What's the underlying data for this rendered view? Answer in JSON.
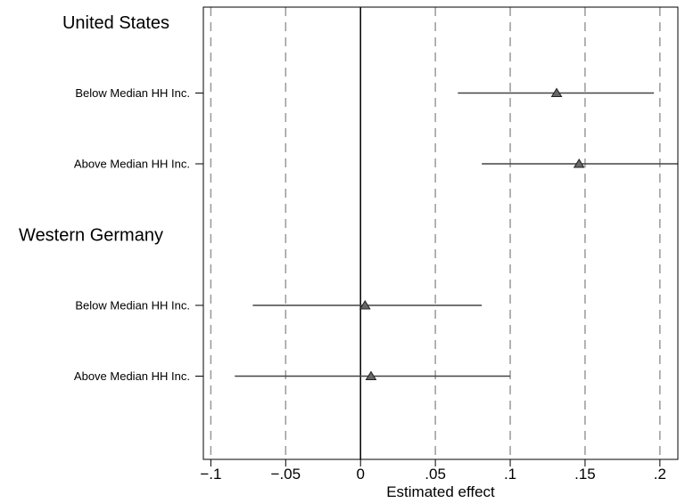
{
  "chart_data": {
    "type": "scatter",
    "subtype": "coefficient-plot",
    "xlabel": "Estimated effect",
    "xlim": [
      -0.105,
      0.212
    ],
    "x_ticks": [
      -0.1,
      -0.05,
      0,
      0.05,
      0.1,
      0.15,
      0.2
    ],
    "x_tick_labels": [
      "−.1",
      "−.05",
      "0",
      ".05",
      ".1",
      ".15",
      ".2"
    ],
    "grid": "vertical dashed at each x tick",
    "reference_line_x": 0,
    "marker": "triangle",
    "colors": {
      "marker_fill": "#666666",
      "marker_stroke": "#222222",
      "ci_line": "#444444",
      "grid": "#999999",
      "axis": "#000000"
    },
    "groups": [
      {
        "label": "United States",
        "rows": [
          {
            "label": "Below Median HH Inc.",
            "estimate": 0.131,
            "ci": [
              0.065,
              0.196
            ]
          },
          {
            "label": "Above Median HH Inc.",
            "estimate": 0.146,
            "ci": [
              0.081,
              0.212
            ]
          }
        ]
      },
      {
        "label": "Western Germany",
        "rows": [
          {
            "label": "Below Median HH Inc.",
            "estimate": 0.003,
            "ci": [
              -0.072,
              0.081
            ]
          },
          {
            "label": "Above Median HH Inc.",
            "estimate": 0.007,
            "ci": [
              -0.084,
              0.1
            ]
          }
        ]
      }
    ]
  }
}
